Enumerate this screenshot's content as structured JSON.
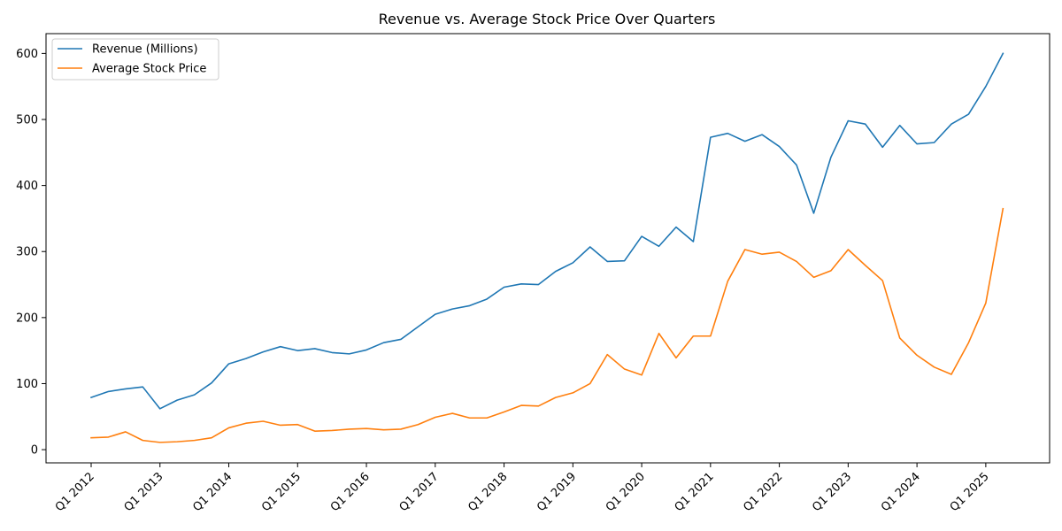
{
  "chart_data": {
    "type": "line",
    "title": "Revenue vs. Average Stock Price Over Quarters",
    "xlabel": "",
    "ylabel": "",
    "ylim": [
      -20,
      630
    ],
    "yticks": [
      0,
      100,
      200,
      300,
      400,
      500,
      600
    ],
    "grid": false,
    "legend": "top-left",
    "x": [
      "Q1 2012",
      "Q2 2012",
      "Q3 2012",
      "Q4 2012",
      "Q1 2013",
      "Q2 2013",
      "Q3 2013",
      "Q4 2013",
      "Q1 2014",
      "Q2 2014",
      "Q3 2014",
      "Q4 2014",
      "Q1 2015",
      "Q2 2015",
      "Q3 2015",
      "Q4 2015",
      "Q1 2016",
      "Q2 2016",
      "Q3 2016",
      "Q4 2016",
      "Q1 2017",
      "Q2 2017",
      "Q3 2017",
      "Q4 2017",
      "Q1 2018",
      "Q2 2018",
      "Q3 2018",
      "Q4 2018",
      "Q1 2019",
      "Q2 2019",
      "Q3 2019",
      "Q4 2019",
      "Q1 2020",
      "Q2 2020",
      "Q3 2020",
      "Q4 2020",
      "Q1 2021",
      "Q2 2021",
      "Q3 2021",
      "Q4 2021",
      "Q1 2022",
      "Q2 2022",
      "Q3 2022",
      "Q4 2022",
      "Q1 2023",
      "Q2 2023",
      "Q3 2023",
      "Q4 2023",
      "Q1 2024",
      "Q2 2024",
      "Q3 2024",
      "Q4 2024",
      "Q1 2025",
      "Q2 2025"
    ],
    "xtick_labels": [
      "Q1 2012",
      "Q1 2013",
      "Q1 2014",
      "Q1 2015",
      "Q1 2016",
      "Q1 2017",
      "Q1 2018",
      "Q1 2019",
      "Q1 2020",
      "Q1 2021",
      "Q1 2022",
      "Q1 2023",
      "Q1 2024",
      "Q1 2025"
    ],
    "series": [
      {
        "name": "Revenue (Millions)",
        "color": "#1f77b4",
        "values": [
          79,
          88,
          92,
          95,
          62,
          75,
          83,
          101,
          130,
          138,
          148,
          156,
          150,
          153,
          147,
          145,
          151,
          162,
          167,
          186,
          205,
          213,
          218,
          228,
          246,
          251,
          250,
          270,
          283,
          307,
          285,
          286,
          323,
          308,
          337,
          315,
          473,
          479,
          467,
          477,
          459,
          431,
          358,
          443,
          498,
          493,
          458,
          491,
          463,
          465,
          493,
          508,
          550,
          600
        ]
      },
      {
        "name": "Average Stock Price",
        "color": "#ff7f0e",
        "values": [
          18,
          19,
          27,
          14,
          11,
          12,
          14,
          18,
          33,
          40,
          43,
          37,
          38,
          28,
          29,
          31,
          32,
          30,
          31,
          38,
          49,
          55,
          48,
          48,
          57,
          67,
          66,
          79,
          86,
          100,
          144,
          122,
          113,
          176,
          139,
          172,
          172,
          255,
          303,
          296,
          299,
          285,
          261,
          271,
          303,
          279,
          256,
          169,
          143,
          125,
          114,
          162,
          222,
          365
        ]
      }
    ]
  }
}
